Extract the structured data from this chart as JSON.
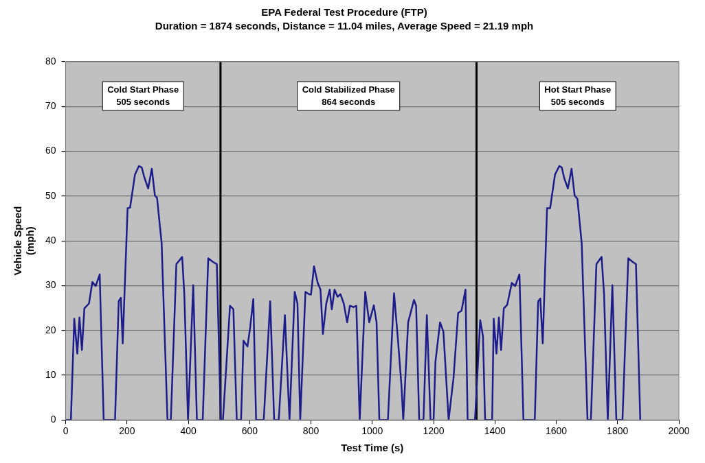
{
  "chart_data": {
    "type": "line",
    "title": "EPA Federal Test Procedure (FTP)",
    "subtitle": "Duration = 1874 seconds, Distance = 11.04 miles, Average Speed = 21.19 mph",
    "xlabel": "Test Time (s)",
    "ylabel": "Vehicle Speed\n(mph)",
    "series": [
      {
        "color": "#1c1c8a",
        "x": [
          0,
          17,
          28,
          38,
          45,
          53,
          61,
          76,
          87,
          98,
          111,
          124,
          161,
          173,
          180,
          186,
          202,
          210,
          226,
          239,
          248,
          256,
          269,
          281,
          291,
          298,
          313,
          332,
          343,
          361,
          380,
          387,
          399,
          416,
          428,
          447,
          465,
          480,
          493,
          506,
          513,
          536,
          547,
          558,
          572,
          580,
          593,
          602,
          612,
          621,
          646,
          667,
          680,
          695,
          715,
          730,
          747,
          756,
          765,
          782,
          793,
          800,
          810,
          822,
          831,
          839,
          850,
          861,
          868,
          877,
          887,
          896,
          907,
          918,
          927,
          939,
          948,
          959,
          977,
          990,
          1005,
          1014,
          1023,
          1051,
          1071,
          1084,
          1095,
          1101,
          1117,
          1136,
          1143,
          1153,
          1167,
          1178,
          1190,
          1200,
          1206,
          1221,
          1232,
          1249,
          1265,
          1280,
          1291,
          1304,
          1311,
          1335,
          1352,
          1361,
          1368,
          1391,
          1396,
          1405,
          1413,
          1420,
          1429,
          1440,
          1455,
          1466,
          1480,
          1493,
          1530,
          1541,
          1548,
          1556,
          1570,
          1580,
          1596,
          1610,
          1618,
          1626,
          1638,
          1650,
          1660,
          1669,
          1683,
          1702,
          1713,
          1731,
          1748,
          1756,
          1768,
          1783,
          1796,
          1816,
          1835,
          1849,
          1860,
          1874
        ],
        "values": [
          0,
          0,
          22.6,
          14.8,
          22.9,
          15.6,
          24.9,
          26,
          30.8,
          29.9,
          32.5,
          0,
          0,
          26.5,
          27.3,
          17.1,
          47.3,
          47.4,
          54.8,
          56.7,
          56.4,
          54.3,
          51.7,
          56.1,
          50.1,
          49.6,
          39.5,
          0,
          0,
          34.8,
          36.4,
          28,
          0,
          30.1,
          0,
          0,
          36.1,
          35.3,
          34.8,
          0,
          0,
          25.5,
          24.7,
          0,
          0,
          17.7,
          16.4,
          20.8,
          27,
          0,
          0,
          26.5,
          0,
          0,
          23.4,
          0,
          28.6,
          26,
          0,
          28.6,
          28.1,
          28,
          34.3,
          30.6,
          29.1,
          19.2,
          26,
          29.1,
          24.7,
          29.1,
          27.5,
          28.1,
          26,
          21.8,
          25.5,
          25.2,
          25.5,
          0,
          28.6,
          21.8,
          25.6,
          21.8,
          0,
          0,
          28.3,
          17.7,
          7.8,
          0,
          21.8,
          26.8,
          25.5,
          0,
          0,
          23.4,
          0,
          0,
          13,
          21.8,
          19.7,
          0,
          9.4,
          23.9,
          24.4,
          29.1,
          0,
          0,
          22.3,
          18.7,
          0,
          0,
          22.6,
          14.8,
          22.9,
          15.6,
          24.9,
          25.7,
          30.6,
          29.9,
          32.5,
          0,
          0,
          26.5,
          27.1,
          17.1,
          47.3,
          47.3,
          54.8,
          56.7,
          56.4,
          54,
          51.7,
          56.1,
          50.1,
          49.4,
          39.5,
          0,
          0,
          34.8,
          36.4,
          28,
          0,
          30.1,
          0,
          0,
          36.1,
          35.3,
          34.8,
          0
        ]
      }
    ],
    "xlim": [
      0,
      2000
    ],
    "xticks": [
      0,
      200,
      400,
      600,
      800,
      1000,
      1200,
      1400,
      1600,
      1800,
      2000
    ],
    "ylim": [
      0,
      80
    ],
    "yticks": [
      0,
      10,
      20,
      30,
      40,
      50,
      60,
      70,
      80
    ],
    "grid": "y",
    "legend": false,
    "marker": "none",
    "line_style": "solid",
    "ref_lines": [
      {
        "axis": "x",
        "value": 505,
        "color": "#000000"
      },
      {
        "axis": "x",
        "value": 1340,
        "color": "#000000"
      }
    ],
    "annotations": [
      "Cold Start Phase\n505 seconds",
      "Cold Stabilized Phase\n864 seconds",
      "Hot Start Phase\n505 seconds"
    ]
  }
}
